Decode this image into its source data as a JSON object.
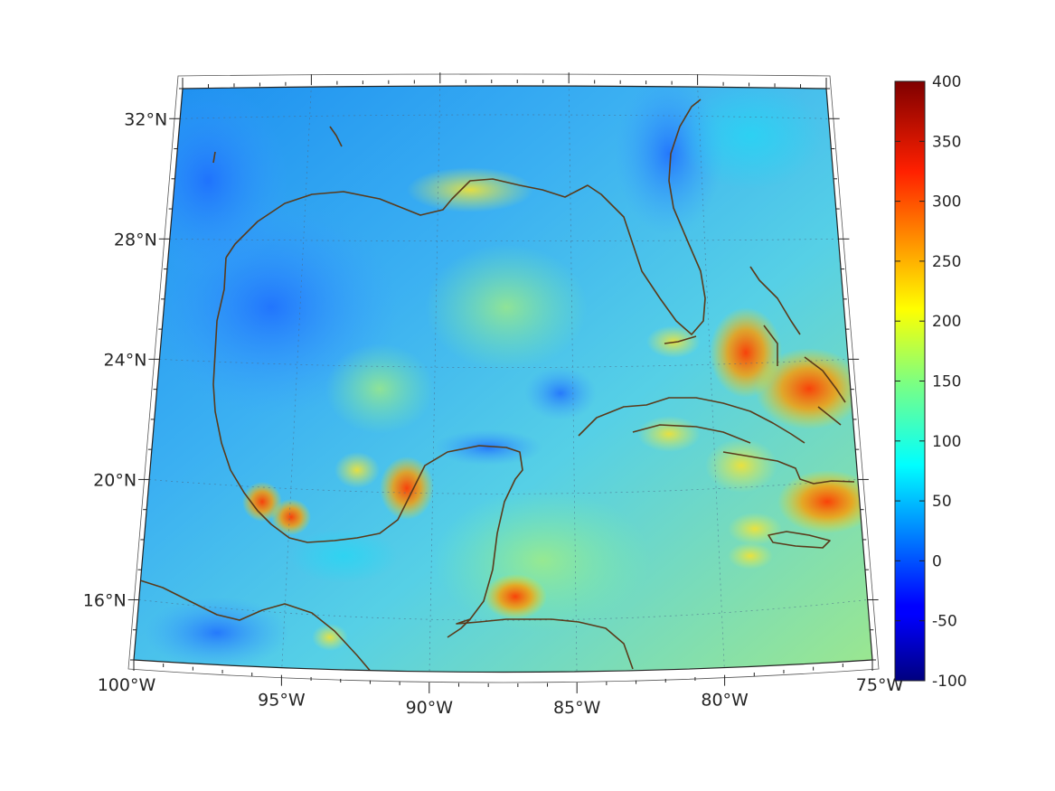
{
  "map": {
    "projection": "conic",
    "lon_range": [
      -100,
      -75
    ],
    "lat_range": [
      14,
      33
    ],
    "lat_ticks": [
      {
        "value": 32,
        "label": "32°N"
      },
      {
        "value": 28,
        "label": "28°N"
      },
      {
        "value": 24,
        "label": "24°N"
      },
      {
        "value": 20,
        "label": "20°N"
      },
      {
        "value": 16,
        "label": "16°N"
      }
    ],
    "lon_ticks": [
      {
        "value": -100,
        "label": "100°W"
      },
      {
        "value": -95,
        "label": "95°W"
      },
      {
        "value": -90,
        "label": "90°W"
      },
      {
        "value": -85,
        "label": "85°W"
      },
      {
        "value": -80,
        "label": "80°W"
      },
      {
        "value": -75,
        "label": "75°W"
      }
    ],
    "grid": true,
    "coastline_color": "#5a3a1a",
    "field_colormap": "jet"
  },
  "colorbar": {
    "min": -100,
    "max": 400,
    "ticks": [
      "400",
      "350",
      "300",
      "250",
      "200",
      "150",
      "100",
      "50",
      "0",
      "-50",
      "-100"
    ],
    "placement": "right"
  }
}
